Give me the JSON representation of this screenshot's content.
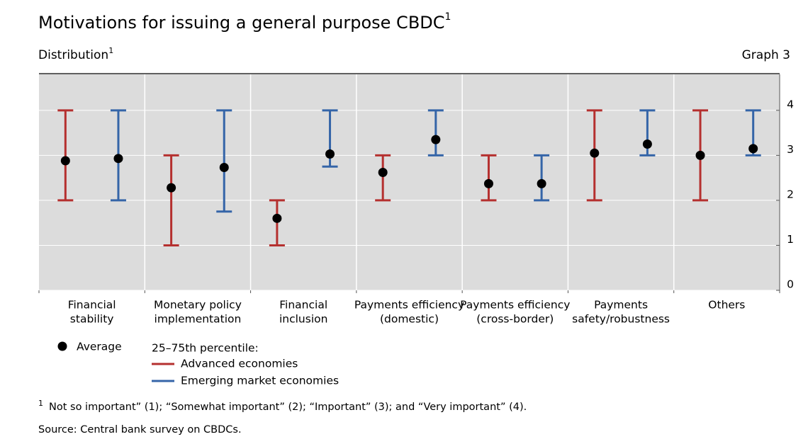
{
  "chart_data": {
    "type": "errorbar",
    "title": "Motivations for issuing a general purpose CBDC",
    "title_note": "1",
    "subtitle": "Distribution",
    "subtitle_note": "1",
    "graph_label": "Graph 3",
    "categories": [
      [
        "Financial",
        "stability"
      ],
      [
        "Monetary policy",
        "implementation"
      ],
      [
        "Financial",
        "inclusion"
      ],
      [
        "Payments efficiency",
        "(domestic)"
      ],
      [
        "Payments efficiency",
        "(cross-border)"
      ],
      [
        "Payments",
        "safety/robustness"
      ],
      [
        "Others"
      ]
    ],
    "average_label": "Average",
    "average_color": "#000000",
    "range_label": "25–75th percentile:",
    "series": [
      {
        "name": "Advanced economies",
        "color": "#b5302f",
        "low": [
          2,
          1,
          1,
          2,
          2,
          2,
          2
        ],
        "high": [
          4,
          3,
          2,
          3,
          3,
          4,
          4
        ],
        "values": [
          2.88,
          2.28,
          1.6,
          2.62,
          2.37,
          3.05,
          3.0
        ]
      },
      {
        "name": "Emerging market economies",
        "color": "#3565a8",
        "low": [
          2,
          1.75,
          2.75,
          3,
          2,
          3,
          3
        ],
        "high": [
          4,
          4,
          4,
          4,
          3,
          4,
          4
        ],
        "values": [
          2.93,
          2.73,
          3.03,
          3.35,
          2.37,
          3.25,
          3.15
        ]
      }
    ],
    "ylim": [
      0,
      4.8
    ],
    "yticks": [
      0,
      1,
      2,
      3,
      4
    ],
    "grid": true,
    "footnote_marker": "1",
    "footnote": "Not so important” (1); “Somewhat important” (2); “Important” (3); and “Very important” (4).",
    "source": "Source: Central bank survey on CBDCs."
  }
}
